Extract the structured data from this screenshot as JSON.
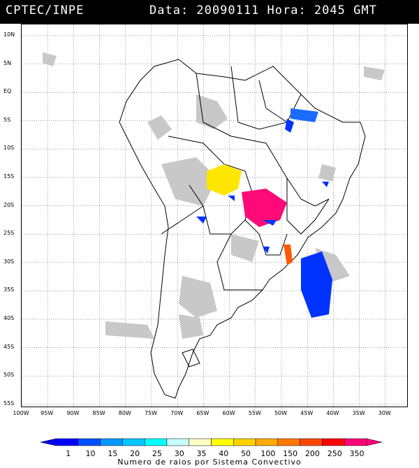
{
  "header": {
    "source": "CPTEC/INPE",
    "datetime": "Data: 20090111 Hora: 2045 GMT"
  },
  "map": {
    "lat_labels": [
      "10N",
      "5N",
      "EQ",
      "5S",
      "10S",
      "15S",
      "20S",
      "25S",
      "30S",
      "35S",
      "40S",
      "45S",
      "50S",
      "55S"
    ],
    "lon_labels": [
      "100W",
      "95W",
      "90W",
      "85W",
      "80W",
      "75W",
      "70W",
      "65W",
      "60W",
      "55W",
      "50W",
      "45W",
      "40W",
      "35W",
      "30W"
    ],
    "colors": {
      "land_outline": "#000000",
      "cloud_gray": "#c8c8c8",
      "blue": "#0033ff",
      "light_blue": "#1a6bff",
      "yellow": "#ffe600",
      "magenta": "#ff0a78",
      "orange": "#ff5a00"
    }
  },
  "legend": {
    "labels": [
      "1",
      "10",
      "15",
      "20",
      "25",
      "30",
      "35",
      "40",
      "50",
      "100",
      "150",
      "200",
      "250",
      "350"
    ],
    "colors": [
      "#0000ff",
      "#0050ff",
      "#0096ff",
      "#00c8ff",
      "#00ffff",
      "#c8ffff",
      "#ffffc8",
      "#ffff00",
      "#ffd200",
      "#ffaa00",
      "#ff7800",
      "#ff4600",
      "#ff0000",
      "#ff0078"
    ],
    "caption": "Numero de raios por Sistema Convectivo"
  }
}
